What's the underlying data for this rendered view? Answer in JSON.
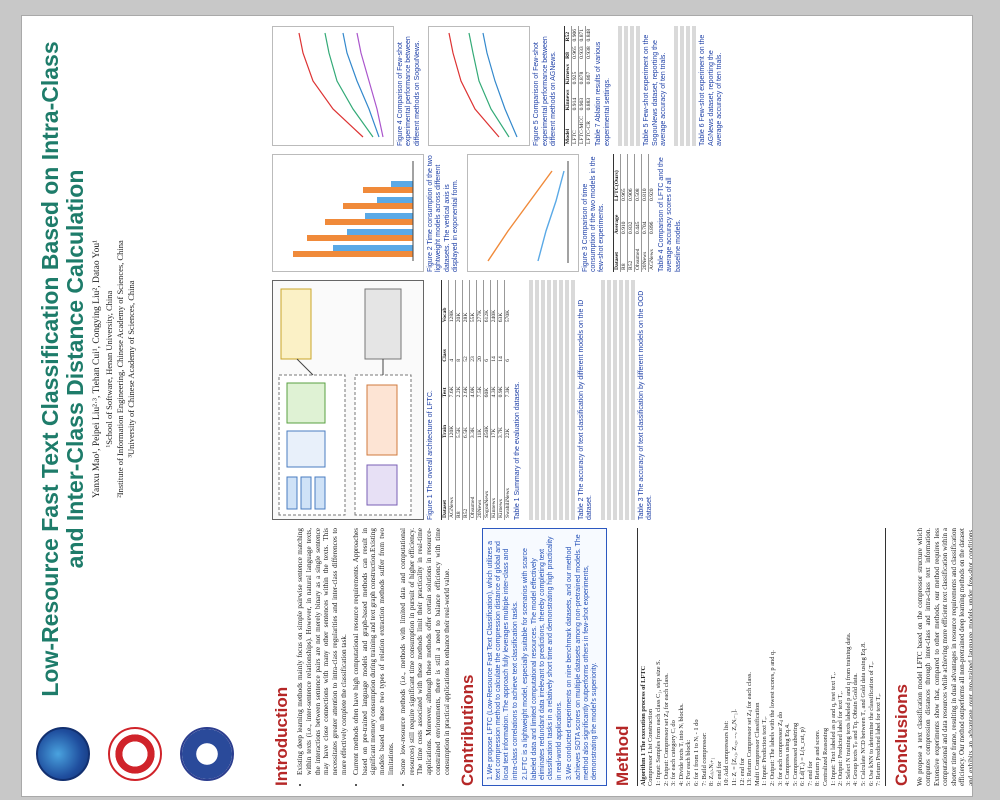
{
  "title": "Low-Resource Fast Text Classification Based on Intra-Class and Inter-Class Distance Calculation",
  "authors": "Yanxu Mao¹, Peipei Liu²·³, Tiehan Cui¹, Congying Liu², Datao You¹",
  "affiliations": [
    "¹School of Software, Henan University, China",
    "²Institute of Information Engineering, Chinese Academy of Sciences, China",
    "³University of Chinese Academy of Sciences, China"
  ],
  "introduction": {
    "heading": "Introduction",
    "points": [
      "Existing deep learning methods mainly focus on simple pairwise sentence matching within texts (i.e., inter-sentence relationships). However, in natural language texts, the interactions between sentence pairs are not merely binary as a single sentence may have close connections with many other sentences within the texts. This necessitates greater attention to intra-class regularities and inter-class differences to more effectively complete the classification task.",
      "Current methods often have high computational resource requirements. Approaches based on pre-trained language models and graph-based methods can result in significant memory consumption during training and text graph construction.Existing models based on these two types of relation extraction methods suffer from two limitations.",
      "Some low-resource methods (i.e., methods with limited data and computational resources) still require significant time consumption in pursuit of higher efficiency. The time costs associated with these methods limit their practicality in real-time applications. Moreover, although these methods offer certain solutions in resource-constrained environments, there is still a need to balance efficiency with time consumption in practical applications to enhance their real-world value."
    ]
  },
  "contributions": {
    "heading": "Contributions",
    "points": [
      "1.We propose LFTC (Low-Resource Fast Text Classification), which utilizes a text compression method to calculate the compression distance of global and local text information. The approach fully leverages multiple inter-class and intra-class correlations to achieve text classification tasks.",
      "2.LFTC is a lightweight model, especially suitable for scenarios with scarce labeled data and limited computational resources. The model effectively eliminates redundant data irrelevant to predictions, thereby completing text classification tasks in a relatively short time and demonstrating high practicality in real-world applications.",
      "3.We conducted experiments on nine benchmark datasets, and our method achieves SOTA scores on multiple datasets among non-pretrained models. The method also significantly outperforms others in few-shot experiments, demonstrating the model's superiority."
    ]
  },
  "method": {
    "heading": "Method",
    "algo_title": "Algorithm 1 The execution process of LFTC",
    "lines": [
      "Compressor List Construction",
      "1: Input: Samples from each class C₁, step size S.",
      "2: Output: Compressor set Zᵢⱼ for each class.",
      "3: for each category Cᵢ do",
      "4:   Divide texts Tᵢ into Nᵢ blocks.",
      "5:   For each block:",
      "6:   for i from 1 to Nᵢ - 1 do",
      "7:     Build compressor:",
      "8:     Zᵢ₍ᵢ₎.Nᵢ₊₁",
      "9:   end for",
      "10:  Add compressors list:",
      "11:  Zᵢ = [Zᵢ,₁, Zᵢ,₂, ..., Zᵢ,Nᵢ₋₁].",
      "12: end for",
      "13: Return Compressor set Zᵢⱼ for each class.",
      "Multi Compressor Classification",
      "1: Input: Prediction text Tₓ.",
      "2: Output: The labels with the lowest scores, p and q.",
      "3: for each compressor Zᵢⱼ do",
      "4:   Compress using Eq.4.",
      "5:   Compressed substring",
      "6:   Ld(Tₓ) = L(x_cat, p)",
      "7: end for",
      "8: Return p and score.",
      "Centralized Reasoning",
      "1: Input: Text labeled as p and q, test text Tₓ.",
      "2: Output: Predicted label for text Tₓ.",
      "3: Select N training texts labeled p and q from training data.",
      "4: Group texts Tₚ and Tq. Obtain Gold data.",
      "5: Calculate NCD between Tₓ and Gold data using Eq.8.",
      "6: Use kNN to determine the classification of Tₓ.",
      "7: Return Predicted label for text Tₓ."
    ]
  },
  "figures": {
    "fig1": "Figure 1 The overall architecture of LFTC.",
    "fig2": "Figure 2 Time consumption of the two lightweight models across different datasets. The vertical axis is displayed in exponential form.",
    "fig3": "Figure 3 Comparison of time consumption of the two models in the few-shot experiments.",
    "fig4": "Figure 4 Comparison of Few-shot experimental performance between different methods on SogouNews.",
    "fig5": "Figure 5 Comparison of Few-shot experimental performance between different methods on AGNews."
  },
  "tables": {
    "t1": "Table 1 Summary of the evaluation datasets.",
    "t2": "Table 2 The accuracy of text classification by different models on the ID dataset.",
    "t3": "Table 3 The accuracy of text classification by different models on the OOD dataset.",
    "t4": "Table 4 Comparison of LFTC and the average accuracy scores of all baseline models.",
    "t5": "Table 5 Few-shot experiment on the SogouNews dataset, reporting the average accuracy of ten trials.",
    "t6": "Table 6 Few-shot experiment on the AGNews dataset, reporting the average accuracy of ten trials.",
    "t7": "Table 7 Ablation results of various experimental settings."
  },
  "table1": {
    "headers": [
      "Dataset",
      "Train",
      "Test",
      "Class",
      "Vocab"
    ],
    "rows": [
      [
        "AGNews",
        "120K",
        "7.6K",
        "4",
        "128K"
      ],
      [
        "R8",
        "5.5K",
        "2.2K",
        "8",
        "20K"
      ],
      [
        "R52",
        "6.5K",
        "2.6K",
        "52",
        "28K"
      ],
      [
        "Ohsumed",
        "3.3K",
        "4.0K",
        "23",
        "55K"
      ],
      [
        "20News",
        "11K",
        "7.5K",
        "20",
        "277K"
      ],
      [
        "SogouNews",
        "450K",
        "60K",
        "6",
        "612K"
      ],
      [
        "Kinnews",
        "17K",
        "4.3K",
        "14",
        "240K"
      ],
      [
        "Kirnews",
        "3.7K",
        "0.9K",
        "14",
        "63K"
      ],
      [
        "SwahiliNews",
        "22K",
        "7.3K",
        "6",
        "570K"
      ]
    ]
  },
  "table4": {
    "headers": [
      "Dataset",
      "Average",
      "LFTC(Ours)"
    ],
    "rows": [
      [
        "R8",
        "0.910",
        "0.965"
      ],
      [
        "R52",
        "0.832",
        "0.906"
      ],
      [
        "Ohsumed",
        "0.445",
        "0.508"
      ],
      [
        "20News",
        "0.704",
        "0.810"
      ],
      [
        "AGNews",
        "0.896",
        "0.920"
      ]
    ]
  },
  "table7": {
    "headers": [
      "Model",
      "Kinnews",
      "Kirnews",
      "R8",
      "R52"
    ],
    "rows": [
      [
        "LFTC",
        "0.914",
        "0.925",
        "0.965",
        "0.906"
      ],
      [
        "LFTC-MCC",
        "0.903",
        "0.878",
        "0.933",
        "0.871"
      ],
      [
        "LFTC-CR",
        "0.883",
        "0.867",
        "0.938",
        "0.848"
      ]
    ]
  },
  "conclusions": {
    "heading": "Conclusions",
    "text": "We propose a text classification model LFTC based on the compressor structure which computes compression distances through inter-class and intra-class text information. Extensive experiments show that, compared to other methods, our method requires less computational and data resources while achieving more efficient text classification within a shorter time frame, resulting in dual advantages in resource requirements and classification efficiency. Our method outperforms all non-pretrained deep learning methods on the dataset and exhibits an advantage over pre-trained language models under few-shot conditions. Compression-based methods for text classification can be achieved through innovative compressor structure design and utilization of valuable information. Such a strategy not only enhances the practical applicability of the model but also offers a new perspective for machine learning tasks in resource-constrained environments."
  },
  "colors": {
    "heading": "#b52727",
    "title": "#1e7c6a",
    "contrib": "#2350b8"
  }
}
